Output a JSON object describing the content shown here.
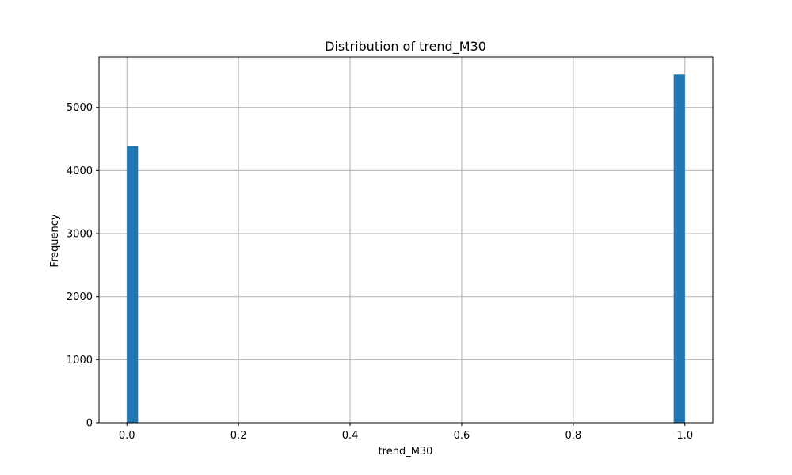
{
  "chart_data": {
    "type": "bar",
    "title": "Distribution of trend_M30",
    "xlabel": "trend_M30",
    "ylabel": "Frequency",
    "xlim": [
      -0.05,
      1.05
    ],
    "ylim": [
      0,
      5800
    ],
    "xticks": [
      0.0,
      0.2,
      0.4,
      0.6,
      0.8,
      1.0
    ],
    "xtick_labels": [
      "0.0",
      "0.2",
      "0.4",
      "0.6",
      "0.8",
      "1.0"
    ],
    "yticks": [
      0,
      1000,
      2000,
      3000,
      4000,
      5000
    ],
    "ytick_labels": [
      "0",
      "1000",
      "2000",
      "3000",
      "4000",
      "5000"
    ],
    "grid": true,
    "bar_color": "#1f77b4",
    "bins": [
      {
        "x_start": 0.0,
        "x_end": 0.02,
        "value": 4390
      },
      {
        "x_start": 0.98,
        "x_end": 1.0,
        "value": 5520
      }
    ]
  }
}
